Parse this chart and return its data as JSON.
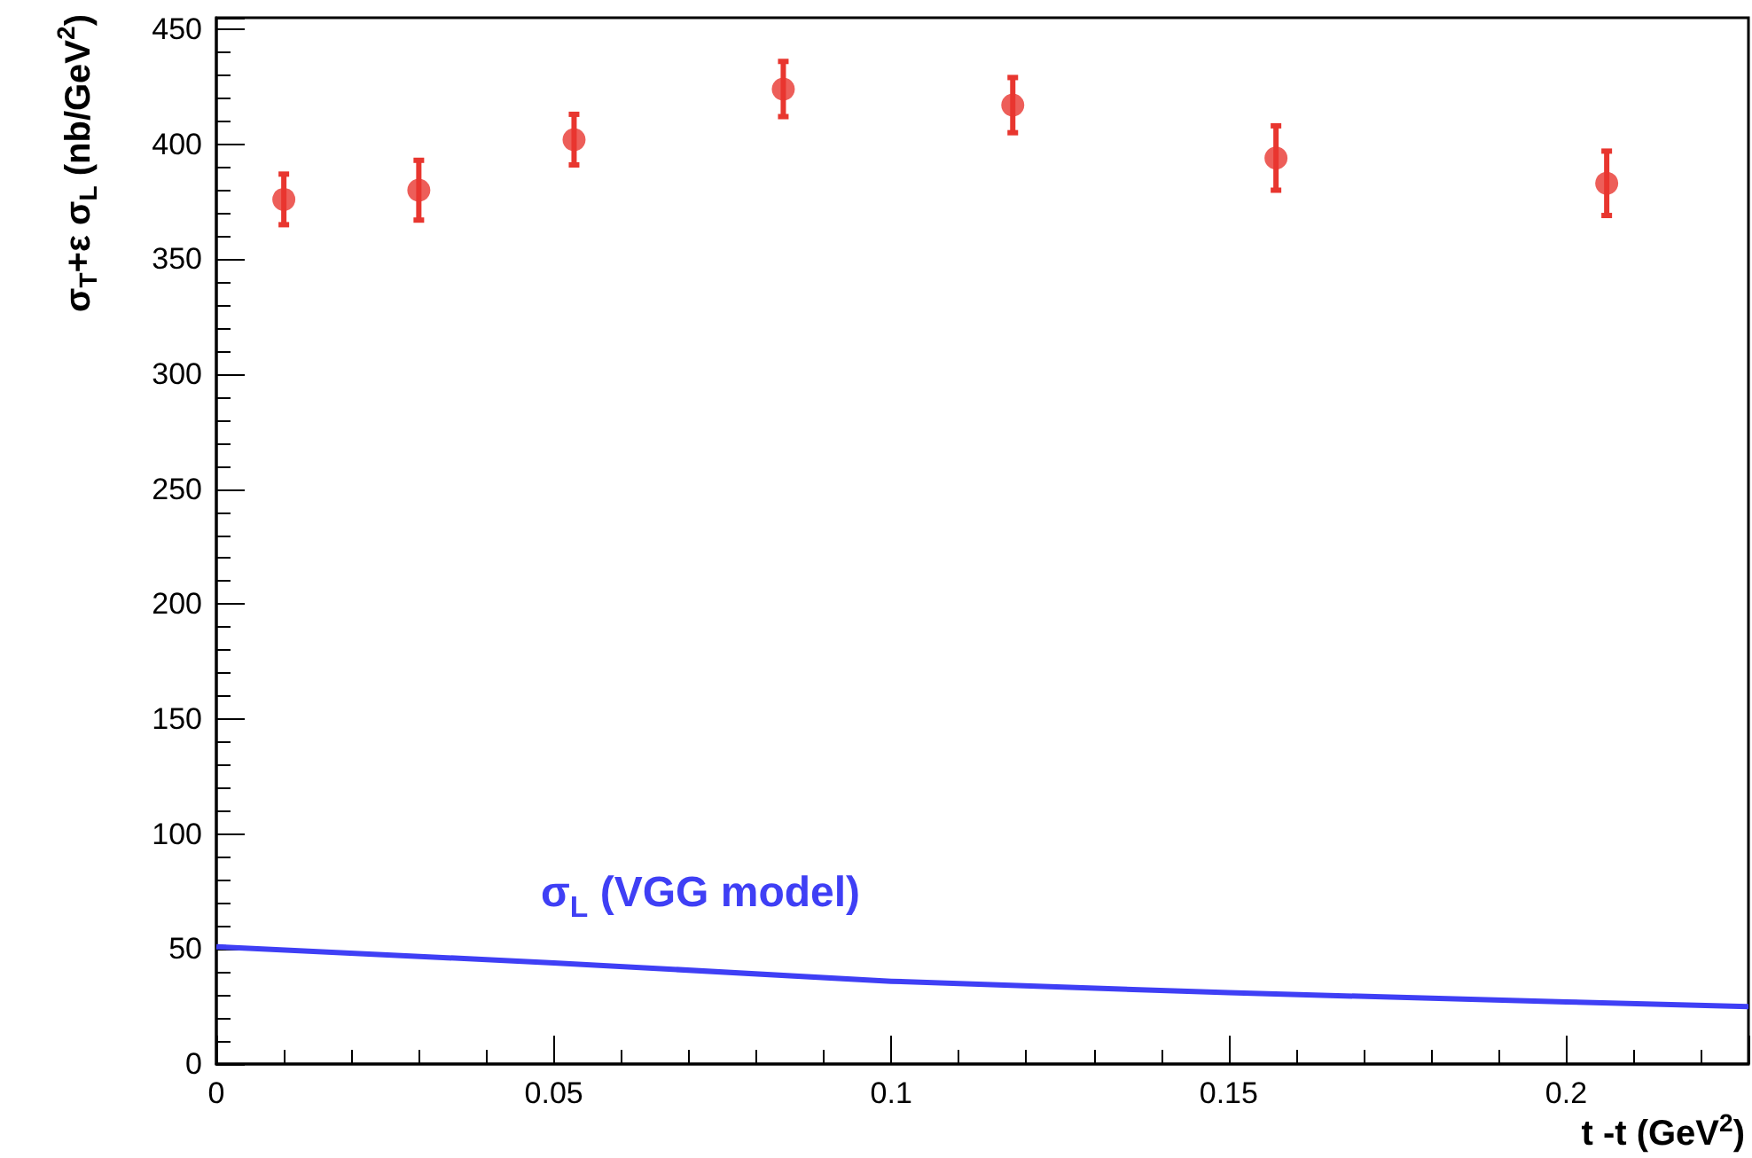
{
  "chart_data": {
    "type": "scatter",
    "xlabel": "t  -t (GeV$^{2}$)",
    "ylabel": "σ$_{T}$+ε σ$_{L}$ (nb/GeV$^{2}$)",
    "xlim": [
      0,
      0.227
    ],
    "xticks": [
      0,
      0.05,
      0.1,
      0.15,
      0.2
    ],
    "ylim": [
      0,
      455
    ],
    "yticks": [
      0,
      50,
      100,
      150,
      200,
      250,
      300,
      350,
      400,
      450
    ],
    "annotations": [
      "σ$_{L}$ (VGG model)"
    ],
    "series": [
      {
        "marker": "circle",
        "color": "#e8362f",
        "x": [
          0.01,
          0.03,
          0.053,
          0.084,
          0.118,
          0.157,
          0.206
        ],
        "values": [
          376,
          380,
          402,
          424,
          417,
          394,
          383
        ],
        "errors": [
          11,
          13,
          11,
          12,
          12,
          14,
          14
        ]
      },
      {
        "type": "line",
        "color": "#3f3ff5",
        "x": [
          0,
          0.05,
          0.1,
          0.15,
          0.2,
          0.227
        ],
        "values": [
          51,
          44,
          36,
          31,
          27,
          25
        ]
      }
    ]
  }
}
